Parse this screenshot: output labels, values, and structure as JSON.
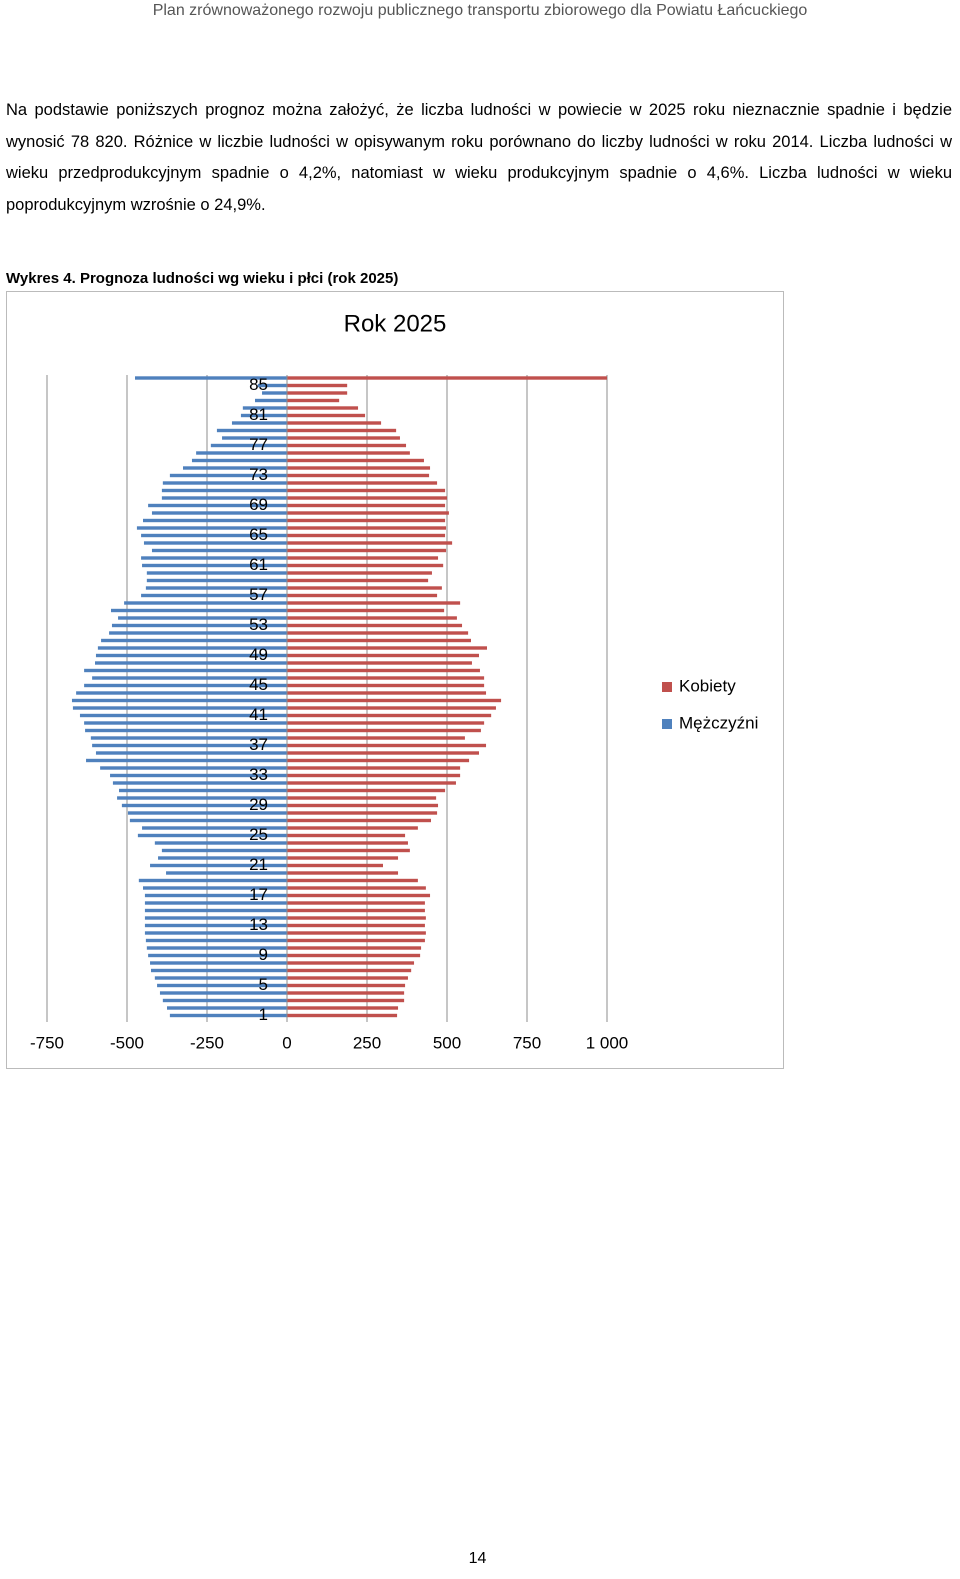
{
  "header": "Plan zrównoważonego rozwoju publicznego transportu zbiorowego dla Powiatu Łańcuckiego",
  "paragraph": "Na podstawie poniższych prognoz można założyć, że liczba ludności w powiecie w 2025 roku nieznacznie spadnie i będzie wynosić 78 820. Różnice w liczbie ludności w opisywanym roku porównano do liczby ludności w roku 2014. Liczba ludności w wieku przedprodukcyjnym spadnie o 4,2%, natomiast w wieku produkcyjnym spadnie o 4,6%. Liczba ludności w wieku poprodukcyjnym wzrośnie o 24,9%.",
  "caption": "Wykres 4. Prognoza ludności wg wieku i płci (rok 2025)",
  "page_number": "14",
  "chart_data": {
    "type": "pyramid",
    "title": "Rok 2025",
    "categories": [
      null,
      "85",
      null,
      null,
      null,
      "81",
      null,
      null,
      null,
      "77",
      null,
      null,
      null,
      "73",
      null,
      null,
      null,
      "69",
      null,
      null,
      null,
      "65",
      null,
      null,
      null,
      "61",
      null,
      null,
      null,
      "57",
      null,
      null,
      null,
      "53",
      null,
      null,
      null,
      "49",
      null,
      null,
      null,
      "45",
      null,
      null,
      null,
      "41",
      null,
      null,
      null,
      "37",
      null,
      null,
      null,
      "33",
      null,
      null,
      null,
      "29",
      null,
      null,
      null,
      "25",
      null,
      null,
      null,
      "21",
      null,
      null,
      null,
      "17",
      null,
      null,
      null,
      "13",
      null,
      null,
      null,
      "9",
      null,
      null,
      null,
      "5",
      null,
      null,
      null,
      "1"
    ],
    "series": [
      {
        "name": "Kobiety",
        "color": "#c0504d",
        "values": [
          1000,
          188,
          188,
          163,
          222,
          244,
          294,
          341,
          353,
          372,
          384,
          428,
          447,
          444,
          469,
          494,
          500,
          494,
          506,
          494,
          497,
          494,
          516,
          497,
          472,
          488,
          453,
          441,
          484,
          469,
          541,
          491,
          531,
          547,
          566,
          575,
          625,
          600,
          578,
          603,
          616,
          616,
          622,
          669,
          653,
          638,
          616,
          606,
          556,
          622,
          600,
          569,
          541,
          541,
          528,
          494,
          466,
          472,
          469,
          450,
          409,
          369,
          378,
          384,
          347,
          300,
          347,
          409,
          434,
          447,
          431,
          431,
          434,
          431,
          434,
          431,
          419,
          416,
          397,
          388,
          378,
          369,
          366,
          366,
          347,
          344
        ]
      },
      {
        "name": "Mężczyźni",
        "color": "#4f81bd",
        "values": [
          -475,
          -91,
          -78,
          -100,
          -138,
          -144,
          -172,
          -219,
          -203,
          -238,
          -284,
          -297,
          -325,
          -366,
          -388,
          -391,
          -391,
          -434,
          -422,
          -450,
          -469,
          -456,
          -447,
          -422,
          -456,
          -453,
          -438,
          -438,
          -441,
          -456,
          -509,
          -550,
          -528,
          -547,
          -556,
          -581,
          -591,
          -597,
          -600,
          -634,
          -609,
          -634,
          -659,
          -672,
          -669,
          -647,
          -634,
          -631,
          -613,
          -609,
          -597,
          -628,
          -584,
          -553,
          -544,
          -525,
          -531,
          -516,
          -497,
          -491,
          -453,
          -466,
          -413,
          -391,
          -403,
          -428,
          -378,
          -463,
          -450,
          -444,
          -444,
          -444,
          -444,
          -444,
          -444,
          -441,
          -438,
          -434,
          -428,
          -425,
          -413,
          -406,
          -397,
          -388,
          -375,
          -366
        ]
      }
    ],
    "xlim": [
      -750,
      1000
    ],
    "xticks": [
      -750,
      -500,
      -250,
      0,
      250,
      500,
      750,
      {
        "value": 1000,
        "label": "1 000"
      }
    ],
    "grid": true,
    "legend": "right"
  }
}
